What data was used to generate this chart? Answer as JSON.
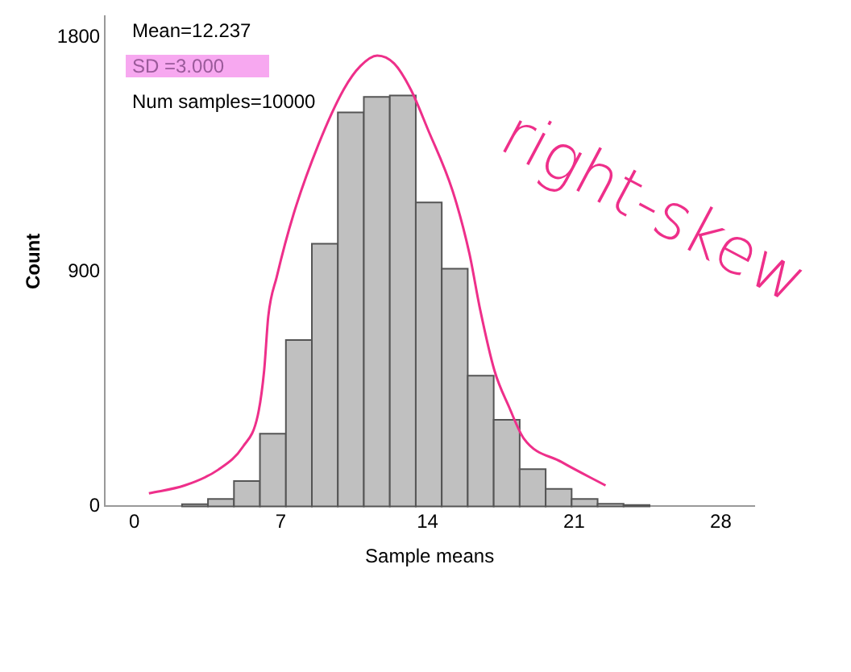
{
  "chart_data": {
    "type": "histogram",
    "xlabel": "Sample means",
    "ylabel": "Count",
    "bins": [
      2.28,
      3.52,
      4.76,
      6.0,
      7.24,
      8.48,
      9.72,
      10.96,
      12.2,
      13.44,
      14.68,
      15.92,
      17.16,
      18.4,
      19.64,
      20.88,
      22.12,
      23.36,
      24.6
    ],
    "values": [
      8,
      28,
      97,
      279,
      638,
      1008,
      1512,
      1571,
      1577,
      1166,
      912,
      501,
      332,
      143,
      67,
      28,
      10,
      5
    ],
    "color": "#c0c0c0",
    "xlim": [
      -1.4,
      29.6
    ],
    "xticks": [
      0,
      7,
      14,
      21,
      28
    ],
    "ylim": [
      0,
      1880
    ],
    "yticks": [
      0,
      900,
      1800
    ],
    "grid": false,
    "series": [
      {
        "type": "line",
        "color": "#ee2f8a",
        "x": [
          0.7,
          2.4,
          4.0,
          5.2,
          5.9,
          6.2,
          6.4,
          6.8,
          7.6,
          8.8,
          10.0,
          10.8,
          11.6,
          12.4,
          13.2,
          14.0,
          15.2,
          16.0,
          16.5,
          17.2,
          17.9,
          18.6,
          20.4,
          22.5
        ],
        "values": [
          50,
          80,
          140,
          230,
          350,
          520,
          730,
          880,
          1120,
          1390,
          1600,
          1690,
          1730,
          1700,
          1600,
          1450,
          1210,
          970,
          760,
          520,
          380,
          260,
          170,
          80
        ]
      }
    ],
    "annotations": [
      "Mean=12.237",
      "SD =3.000",
      "Num samples=10000",
      "right-skew"
    ]
  }
}
